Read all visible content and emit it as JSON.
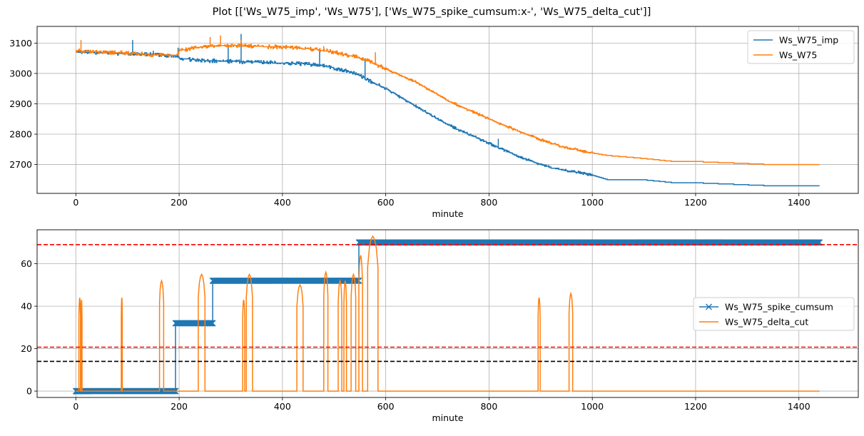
{
  "title": "Plot [['Ws_W75_imp', 'Ws_W75'], ['Ws_W75_spike_cumsum:x-', 'Ws_W75_delta_cut']]",
  "chart_data": [
    {
      "type": "line",
      "xlabel": "minute",
      "ylabel": "",
      "xlim": [
        -75,
        1515
      ],
      "ylim": [
        2605,
        3155
      ],
      "xticks": [
        0,
        200,
        400,
        600,
        800,
        1000,
        1200,
        1400
      ],
      "yticks": [
        2700,
        2800,
        2900,
        3000,
        3100
      ],
      "grid": true,
      "legend_position": "upper right",
      "series": [
        {
          "name": "Ws_W75_imp",
          "color": "#1f77b4",
          "marker": "none",
          "style": "steps",
          "noise": 6,
          "spikes": [
            [
              110,
              3110
            ],
            [
              150,
              3075
            ],
            [
              198,
              3085
            ],
            [
              295,
              3095
            ],
            [
              320,
              3130
            ],
            [
              472,
              3080
            ],
            [
              560,
              3050
            ],
            [
              818,
              2785
            ]
          ],
          "x": [
            0,
            20,
            60,
            110,
            150,
            195,
            200,
            230,
            260,
            300,
            340,
            380,
            420,
            460,
            480,
            500,
            520,
            540,
            560,
            580,
            600,
            620,
            640,
            660,
            680,
            700,
            720,
            740,
            760,
            780,
            800,
            820,
            840,
            860,
            880,
            900,
            920,
            940,
            960,
            980,
            990,
            1000,
            1030,
            1100,
            1158,
            1200,
            1346,
            1440
          ],
          "y": [
            3070,
            3070,
            3068,
            3065,
            3062,
            3058,
            3050,
            3045,
            3042,
            3040,
            3038,
            3035,
            3033,
            3030,
            3025,
            3018,
            3010,
            3000,
            2985,
            2965,
            2950,
            2930,
            2910,
            2890,
            2870,
            2850,
            2832,
            2815,
            2800,
            2785,
            2770,
            2755,
            2740,
            2725,
            2712,
            2700,
            2690,
            2683,
            2677,
            2672,
            2668,
            2665,
            2650,
            2650,
            2640,
            2640,
            2630,
            2630
          ]
        },
        {
          "name": "Ws_W75",
          "color": "#ff7f0e",
          "marker": "none",
          "style": "steps",
          "noise": 6,
          "spikes": [
            [
              10,
              3110
            ],
            [
              170,
              3060
            ],
            [
              260,
              3120
            ],
            [
              280,
              3125
            ],
            [
              320,
              3110
            ],
            [
              480,
              3090
            ],
            [
              580,
              3070
            ]
          ],
          "x": [
            0,
            20,
            60,
            110,
            150,
            195,
            200,
            230,
            260,
            300,
            340,
            380,
            420,
            460,
            480,
            500,
            520,
            540,
            560,
            580,
            600,
            620,
            640,
            660,
            680,
            700,
            720,
            740,
            760,
            780,
            800,
            820,
            840,
            860,
            880,
            900,
            920,
            940,
            960,
            980,
            1000,
            1030,
            1100,
            1158,
            1200,
            1346,
            1440
          ],
          "y": [
            3075,
            3073,
            3070,
            3066,
            3062,
            3060,
            3075,
            3085,
            3090,
            3092,
            3090,
            3088,
            3085,
            3080,
            3075,
            3070,
            3062,
            3055,
            3045,
            3030,
            3015,
            3000,
            2985,
            2970,
            2950,
            2930,
            2910,
            2895,
            2880,
            2865,
            2850,
            2835,
            2822,
            2808,
            2795,
            2782,
            2770,
            2760,
            2752,
            2745,
            2738,
            2730,
            2720,
            2710,
            2710,
            2700,
            2700
          ]
        }
      ]
    },
    {
      "type": "line",
      "xlabel": "minute",
      "ylabel": "",
      "xlim": [
        -75,
        1515
      ],
      "ylim": [
        -3,
        76
      ],
      "xticks": [
        0,
        200,
        400,
        600,
        800,
        1000,
        1200,
        1400
      ],
      "yticks": [
        0,
        20,
        40,
        60
      ],
      "grid": true,
      "legend_position": "center right",
      "series": [
        {
          "name": "Ws_W75_spike_cumsum",
          "color": "#1f77b4",
          "marker": "x",
          "style": "steps",
          "segments": [
            [
              0,
              193,
              0
            ],
            [
              193,
              265,
              32
            ],
            [
              265,
              548,
              52
            ],
            [
              548,
              1440,
              70
            ]
          ]
        },
        {
          "name": "Ws_W75_delta_cut",
          "color": "#ff7f0e",
          "marker": "none",
          "style": "pulses",
          "baseline": 0,
          "pulses": [
            [
              6,
              9,
              44
            ],
            [
              10,
              12,
              43
            ],
            [
              88,
              90,
              44
            ],
            [
              162,
              170,
              52
            ],
            [
              237,
              250,
              55
            ],
            [
              323,
              327,
              43
            ],
            [
              330,
              342,
              55
            ],
            [
              428,
              440,
              50
            ],
            [
              480,
              488,
              56
            ],
            [
              508,
              515,
              52
            ],
            [
              519,
              524,
              52
            ],
            [
              533,
              542,
              55
            ],
            [
              548,
              555,
              64
            ],
            [
              565,
              585,
              73
            ],
            [
              895,
              899,
              44
            ],
            [
              955,
              962,
              46
            ]
          ]
        }
      ],
      "hlines": [
        {
          "y": 69,
          "color": "#ff0000",
          "style": "dashed"
        },
        {
          "y": 20.7,
          "color": "#ff0000",
          "style": "dashed"
        },
        {
          "y": 14,
          "color": "#000000",
          "style": "dashed"
        }
      ]
    }
  ]
}
